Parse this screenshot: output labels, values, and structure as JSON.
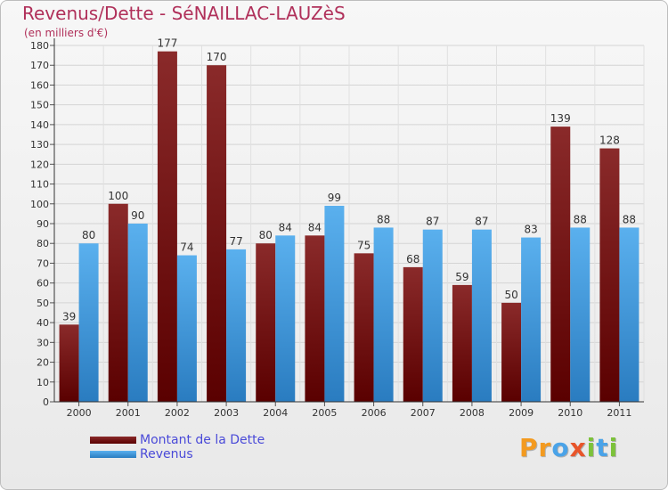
{
  "chart_data": {
    "type": "bar",
    "title": "Revenus/Dette - SéNAILLAC-LAUZèS",
    "subtitle": "(en milliers d'€)",
    "categories": [
      "2000",
      "2001",
      "2002",
      "2003",
      "2004",
      "2005",
      "2006",
      "2007",
      "2008",
      "2009",
      "2010",
      "2011"
    ],
    "series": [
      {
        "name": "Montant de la Dette",
        "color": "#7a1515",
        "values": [
          39,
          100,
          177,
          170,
          80,
          84,
          75,
          68,
          59,
          50,
          139,
          128
        ]
      },
      {
        "name": "Revenus",
        "color": "#4aa3e8",
        "values": [
          80,
          90,
          74,
          77,
          84,
          99,
          88,
          87,
          87,
          83,
          88,
          88
        ]
      }
    ],
    "ylim": [
      0,
      180
    ],
    "yticks": [
      0,
      10,
      20,
      30,
      40,
      50,
      60,
      70,
      80,
      90,
      100,
      110,
      120,
      130,
      140,
      150,
      160,
      170,
      180
    ],
    "grid": true,
    "legend_position": "bottom-left"
  },
  "logo": {
    "text": "Proxiti",
    "letters": [
      {
        "ch": "P",
        "color": "#f39a1f"
      },
      {
        "ch": "r",
        "color": "#f39a1f"
      },
      {
        "ch": "o",
        "color": "#4aa3e8"
      },
      {
        "ch": "x",
        "color": "#e8552a"
      },
      {
        "ch": "i",
        "color": "#7cc23a"
      },
      {
        "ch": "t",
        "color": "#4aa3e8"
      },
      {
        "ch": "i",
        "color": "#7cc23a"
      }
    ]
  }
}
